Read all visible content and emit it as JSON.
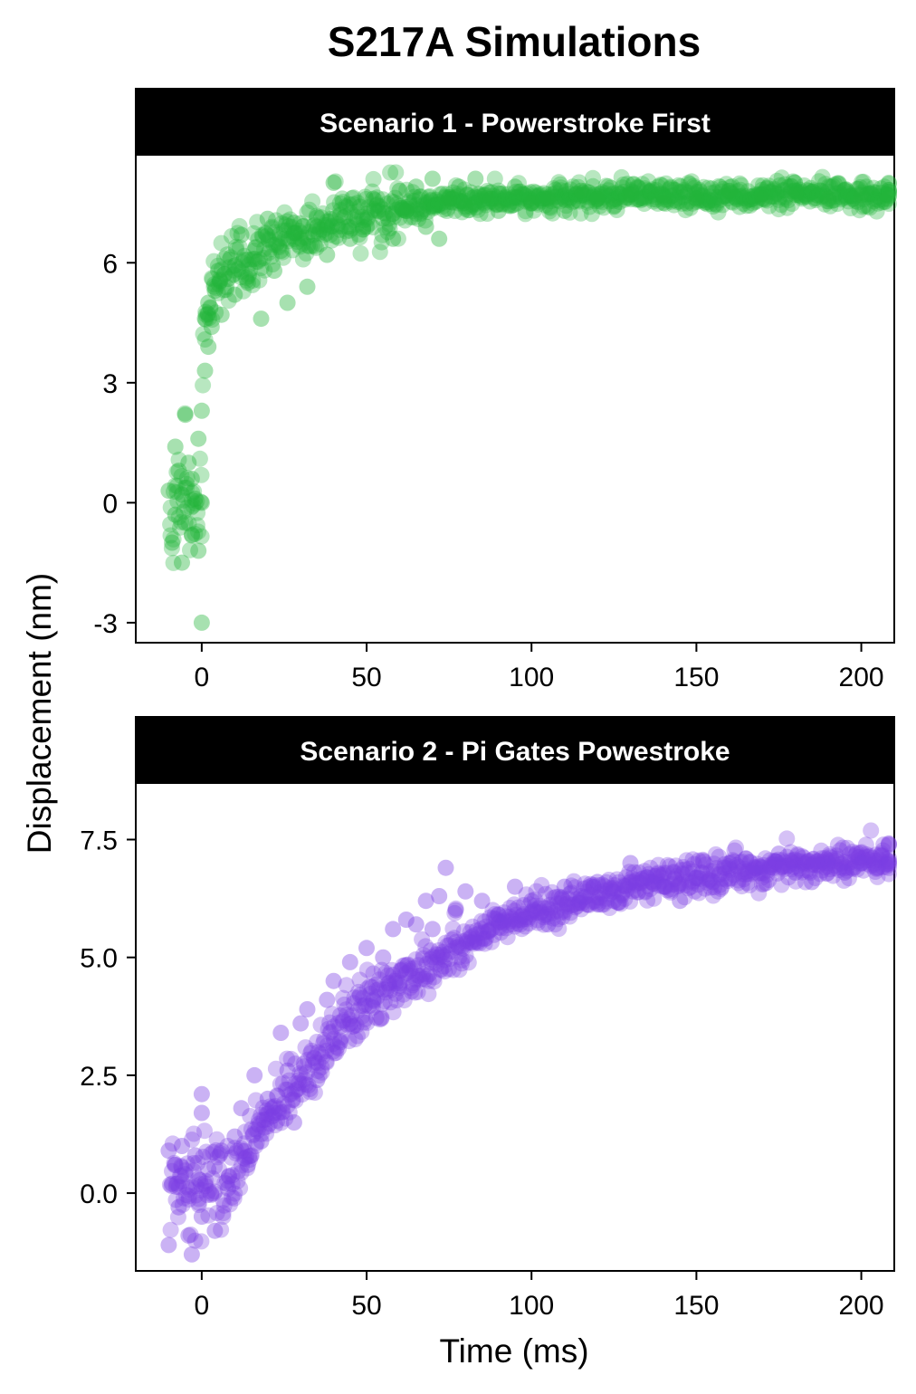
{
  "chart_data": {
    "title": "S217A Simulations",
    "ylabel": "Displacement (nm)",
    "xlabel": "Time (ms)",
    "type": "scatter",
    "panels": [
      {
        "strip_label": "Scenario 1 - Powerstroke First",
        "type": "scatter",
        "color": "#22b53a",
        "xlim": [
          -20,
          210
        ],
        "ylim": [
          -3.5,
          8.7
        ],
        "xticks": [
          0,
          50,
          100,
          150,
          200
        ],
        "xtick_labels": [
          "0",
          "50",
          "100",
          "150",
          "200"
        ],
        "yticks": [
          -3,
          0,
          3,
          6
        ],
        "ytick_labels": [
          "-3",
          "0",
          "3",
          "6"
        ],
        "series": [
          {
            "model": "pre-stroke baseline ~0 nm for t<0, fast rise to ~5 nm at t=0, then slow approach to ~7.6 nm by ~80 ms, plateau to 210 ms",
            "points": [
              [
                -10,
                0.3
              ],
              [
                -9,
                -1.0
              ],
              [
                -8,
                1.4
              ],
              [
                -8,
                -0.3
              ],
              [
                -7,
                0.8
              ],
              [
                -6,
                -1.5
              ],
              [
                -6,
                0.2
              ],
              [
                -5,
                2.2
              ],
              [
                -5,
                -0.5
              ],
              [
                -4,
                1.0
              ],
              [
                -3,
                -0.8
              ],
              [
                -3,
                0.6
              ],
              [
                -2,
                0.1
              ],
              [
                -1,
                1.6
              ],
              [
                -1,
                -1.2
              ],
              [
                0,
                2.3
              ],
              [
                0,
                0.0
              ],
              [
                0,
                -3.0
              ],
              [
                1,
                3.3
              ],
              [
                1,
                4.6
              ],
              [
                2,
                3.9
              ],
              [
                2,
                5.0
              ],
              [
                3,
                4.4
              ],
              [
                4,
                5.3
              ],
              [
                5,
                5.8
              ],
              [
                6,
                4.7
              ],
              [
                8,
                5.6
              ],
              [
                10,
                5.2
              ],
              [
                12,
                6.7
              ],
              [
                14,
                5.5
              ],
              [
                16,
                6.1
              ],
              [
                18,
                4.6
              ],
              [
                20,
                7.1
              ],
              [
                22,
                5.8
              ],
              [
                24,
                6.3
              ],
              [
                26,
                5.0
              ],
              [
                28,
                7.0
              ],
              [
                30,
                6.6
              ],
              [
                32,
                5.4
              ],
              [
                35,
                6.9
              ],
              [
                38,
                6.2
              ],
              [
                40,
                8.0
              ],
              [
                42,
                7.2
              ],
              [
                45,
                6.6
              ],
              [
                48,
                7.4
              ],
              [
                50,
                6.9
              ],
              [
                52,
                7.6
              ],
              [
                55,
                7.1
              ],
              [
                58,
                6.6
              ],
              [
                60,
                7.8
              ],
              [
                62,
                7.3
              ],
              [
                65,
                7.9
              ],
              [
                68,
                6.9
              ],
              [
                70,
                8.1
              ],
              [
                72,
                6.6
              ],
              [
                75,
                7.6
              ],
              [
                78,
                7.9
              ],
              [
                80,
                7.4
              ],
              [
                83,
                8.1
              ],
              [
                86,
                7.7
              ],
              [
                90,
                7.3
              ],
              [
                95,
                7.9
              ],
              [
                100,
                7.5
              ],
              [
                105,
                7.6
              ],
              [
                110,
                7.3
              ],
              [
                115,
                7.8
              ],
              [
                120,
                7.6
              ],
              [
                125,
                7.4
              ],
              [
                130,
                7.7
              ],
              [
                140,
                7.5
              ],
              [
                150,
                7.6
              ],
              [
                160,
                7.8
              ],
              [
                170,
                7.6
              ],
              [
                180,
                7.7
              ],
              [
                190,
                7.6
              ],
              [
                200,
                7.7
              ],
              [
                208,
                7.6
              ]
            ]
          }
        ]
      },
      {
        "strip_label": "Scenario 2 - Pi Gates Powestroke",
        "type": "scatter",
        "color": "#7b3fe4",
        "xlim": [
          -20,
          210
        ],
        "ylim": [
          -1.65,
          8.7
        ],
        "xticks": [
          0,
          50,
          100,
          150,
          200
        ],
        "xtick_labels": [
          "0",
          "50",
          "100",
          "150",
          "200"
        ],
        "yticks": [
          0.0,
          2.5,
          5.0,
          7.5
        ],
        "ytick_labels": [
          "0.0",
          "2.5",
          "5.0",
          "7.5"
        ],
        "series": [
          {
            "model": "baseline ~0.2 nm until ~8 ms, roughly linear rise to ~5.6 nm at ~65 ms, then slow approach to ~7.0 nm at 210 ms",
            "points": [
              [
                -10,
                0.9
              ],
              [
                -10,
                -1.1
              ],
              [
                -9,
                0.2
              ],
              [
                -8,
                0.6
              ],
              [
                -7,
                -0.3
              ],
              [
                -6,
                1.0
              ],
              [
                -5,
                0.4
              ],
              [
                -4,
                -0.9
              ],
              [
                -3,
                -1.3
              ],
              [
                -2,
                0.8
              ],
              [
                -1,
                0.3
              ],
              [
                0,
                2.1
              ],
              [
                0,
                1.7
              ],
              [
                0,
                -0.5
              ],
              [
                2,
                0.5
              ],
              [
                4,
                -0.8
              ],
              [
                6,
                0.9
              ],
              [
                8,
                0.1
              ],
              [
                10,
                1.2
              ],
              [
                12,
                1.8
              ],
              [
                14,
                0.6
              ],
              [
                16,
                2.5
              ],
              [
                18,
                1.1
              ],
              [
                20,
                2.0
              ],
              [
                22,
                1.7
              ],
              [
                24,
                3.4
              ],
              [
                26,
                2.6
              ],
              [
                28,
                1.5
              ],
              [
                30,
                3.6
              ],
              [
                32,
                3.9
              ],
              [
                35,
                2.4
              ],
              [
                38,
                4.1
              ],
              [
                40,
                4.5
              ],
              [
                42,
                3.2
              ],
              [
                45,
                4.9
              ],
              [
                48,
                4.2
              ],
              [
                50,
                5.2
              ],
              [
                52,
                4.1
              ],
              [
                55,
                5.0
              ],
              [
                58,
                5.6
              ],
              [
                60,
                4.4
              ],
              [
                62,
                5.8
              ],
              [
                65,
                5.7
              ],
              [
                68,
                6.2
              ],
              [
                70,
                5.6
              ],
              [
                72,
                6.3
              ],
              [
                74,
                6.9
              ],
              [
                77,
                6.0
              ],
              [
                80,
                6.4
              ],
              [
                85,
                6.2
              ],
              [
                90,
                5.9
              ],
              [
                95,
                6.5
              ],
              [
                100,
                6.2
              ],
              [
                105,
                5.7
              ],
              [
                110,
                6.5
              ],
              [
                115,
                6.3
              ],
              [
                120,
                6.6
              ],
              [
                125,
                6.2
              ],
              [
                130,
                7.0
              ],
              [
                135,
                6.7
              ],
              [
                140,
                6.5
              ],
              [
                145,
                6.2
              ],
              [
                150,
                6.7
              ],
              [
                155,
                6.6
              ],
              [
                160,
                7.0
              ],
              [
                165,
                7.1
              ],
              [
                170,
                6.9
              ],
              [
                175,
                7.2
              ],
              [
                180,
                6.8
              ],
              [
                185,
                6.6
              ],
              [
                190,
                7.0
              ],
              [
                195,
                6.8
              ],
              [
                200,
                7.0
              ],
              [
                205,
                6.9
              ],
              [
                209,
                7.0
              ]
            ]
          }
        ]
      }
    ]
  }
}
